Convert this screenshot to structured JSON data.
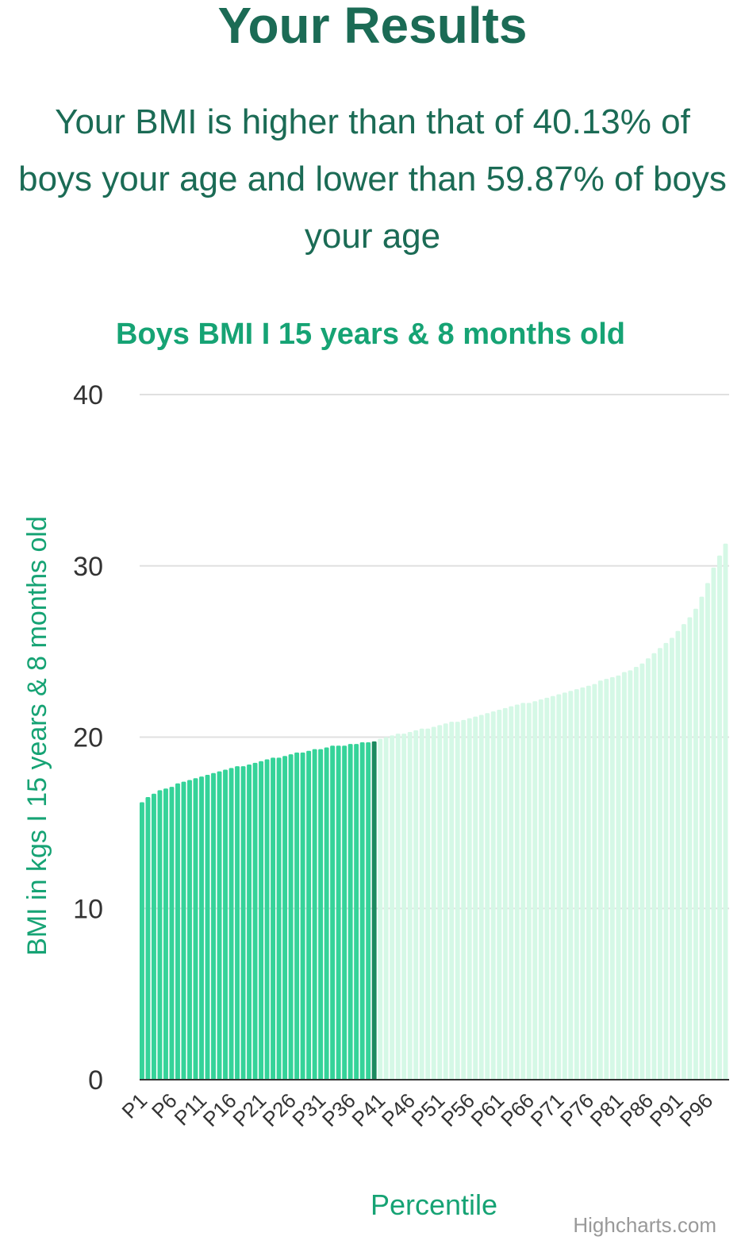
{
  "page": {
    "title": "Your Results",
    "summary": "Your BMI is higher than that of 40.13% of boys your age and lower than 59.87% of boys your age"
  },
  "colors": {
    "text": "#1b6b55",
    "accent": "#16a374",
    "bar_below": "#35d399",
    "bar_user": "#1c8a5f",
    "bar_above": "#d5f8e6",
    "grid": "#e0e0e0",
    "axis": "#333333",
    "credit": "#999999"
  },
  "credit": "Highcharts.com",
  "chart_data": {
    "type": "bar",
    "title": "Boys BMI I 15 years & 8 months old",
    "xlabel": "Percentile",
    "ylabel": "BMI in kgs I 15 years & 8 months old",
    "ylim": [
      0,
      40
    ],
    "yticks": [
      0,
      10,
      20,
      30,
      40
    ],
    "grid": true,
    "highlight_index": 39,
    "categories": [
      "P1",
      "P2",
      "P3",
      "P4",
      "P5",
      "P6",
      "P7",
      "P8",
      "P9",
      "P10",
      "P11",
      "P12",
      "P13",
      "P14",
      "P15",
      "P16",
      "P17",
      "P18",
      "P19",
      "P20",
      "P21",
      "P22",
      "P23",
      "P24",
      "P25",
      "P26",
      "P27",
      "P28",
      "P29",
      "P30",
      "P31",
      "P32",
      "P33",
      "P34",
      "P35",
      "P36",
      "P37",
      "P38",
      "P39",
      "P40",
      "P41",
      "P42",
      "P43",
      "P44",
      "P45",
      "P46",
      "P47",
      "P48",
      "P49",
      "P50",
      "P51",
      "P52",
      "P53",
      "P54",
      "P55",
      "P56",
      "P57",
      "P58",
      "P59",
      "P60",
      "P61",
      "P62",
      "P63",
      "P64",
      "P65",
      "P66",
      "P67",
      "P68",
      "P69",
      "P70",
      "P71",
      "P72",
      "P73",
      "P74",
      "P75",
      "P76",
      "P77",
      "P78",
      "P79",
      "P80",
      "P81",
      "P82",
      "P83",
      "P84",
      "P85",
      "P86",
      "P87",
      "P88",
      "P89",
      "P90",
      "P91",
      "P92",
      "P93",
      "P94",
      "P95",
      "P96",
      "P97",
      "P98",
      "P99"
    ],
    "tick_labels": [
      "P1",
      "P6",
      "P11",
      "P16",
      "P21",
      "P26",
      "P31",
      "P36",
      "P41",
      "P46",
      "P51",
      "P56",
      "P61",
      "P66",
      "P71",
      "P76",
      "P81",
      "P86",
      "P91",
      "P96"
    ],
    "values": [
      16.2,
      16.5,
      16.7,
      16.9,
      17.0,
      17.1,
      17.3,
      17.4,
      17.5,
      17.6,
      17.7,
      17.8,
      17.9,
      18.0,
      18.1,
      18.2,
      18.3,
      18.3,
      18.4,
      18.5,
      18.6,
      18.7,
      18.8,
      18.8,
      18.9,
      19.0,
      19.1,
      19.1,
      19.2,
      19.3,
      19.3,
      19.4,
      19.5,
      19.5,
      19.5,
      19.6,
      19.6,
      19.7,
      19.7,
      19.75,
      19.9,
      20.0,
      20.1,
      20.2,
      20.2,
      20.3,
      20.4,
      20.5,
      20.5,
      20.6,
      20.7,
      20.8,
      20.9,
      20.9,
      21.0,
      21.1,
      21.2,
      21.3,
      21.4,
      21.5,
      21.6,
      21.7,
      21.8,
      21.9,
      22.0,
      22.0,
      22.1,
      22.2,
      22.3,
      22.4,
      22.5,
      22.6,
      22.7,
      22.8,
      22.9,
      23.0,
      23.1,
      23.3,
      23.4,
      23.5,
      23.6,
      23.8,
      23.9,
      24.1,
      24.3,
      24.6,
      24.9,
      25.2,
      25.5,
      25.8,
      26.2,
      26.6,
      27.0,
      27.5,
      28.2,
      29.0,
      29.9,
      30.6,
      31.3
    ]
  }
}
